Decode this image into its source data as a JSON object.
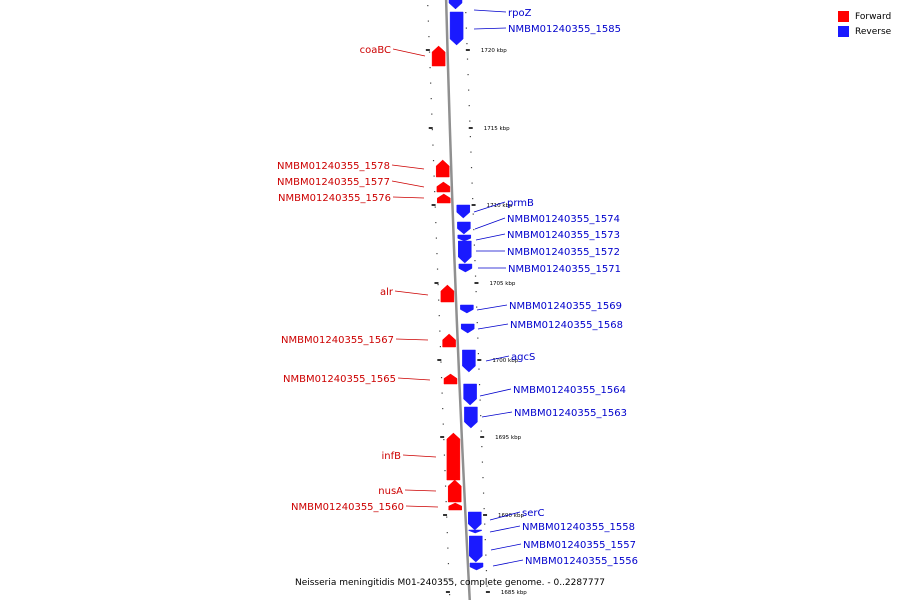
{
  "colors": {
    "forward": "#ff0000",
    "reverse": "#1a1aff",
    "forward_label": "#cc0000",
    "reverse_label": "#0000cc",
    "backbone": "#909090"
  },
  "legend": [
    {
      "label": "Forward",
      "strand": "forward"
    },
    {
      "label": "Reverse",
      "strand": "reverse"
    }
  ],
  "caption": "Neisseria meningitidis M01-240355, complete genome. - 0..2287777",
  "genes": [
    {
      "name": "rpoZ",
      "strand": "reverse"
    },
    {
      "name": "NMBM01240355_1585",
      "strand": "reverse"
    },
    {
      "name": "coaBC",
      "strand": "forward"
    },
    {
      "name": "NMBM01240355_1578",
      "strand": "forward"
    },
    {
      "name": "NMBM01240355_1577",
      "strand": "forward"
    },
    {
      "name": "NMBM01240355_1576",
      "strand": "forward"
    },
    {
      "name": "prmB",
      "strand": "reverse"
    },
    {
      "name": "NMBM01240355_1574",
      "strand": "reverse"
    },
    {
      "name": "NMBM01240355_1573",
      "strand": "reverse"
    },
    {
      "name": "NMBM01240355_1572",
      "strand": "reverse"
    },
    {
      "name": "NMBM01240355_1571",
      "strand": "reverse"
    },
    {
      "name": "alr",
      "strand": "forward"
    },
    {
      "name": "NMBM01240355_1569",
      "strand": "reverse"
    },
    {
      "name": "NMBM01240355_1568",
      "strand": "reverse"
    },
    {
      "name": "NMBM01240355_1567",
      "strand": "forward"
    },
    {
      "name": "agcS",
      "strand": "reverse"
    },
    {
      "name": "NMBM01240355_1565",
      "strand": "forward"
    },
    {
      "name": "NMBM01240355_1564",
      "strand": "reverse"
    },
    {
      "name": "NMBM01240355_1563",
      "strand": "reverse"
    },
    {
      "name": "infB",
      "strand": "forward"
    },
    {
      "name": "nusA",
      "strand": "forward"
    },
    {
      "name": "NMBM01240355_1560",
      "strand": "forward"
    },
    {
      "name": "serC",
      "strand": "reverse"
    },
    {
      "name": "NMBM01240355_1558",
      "strand": "reverse"
    },
    {
      "name": "NMBM01240355_1557",
      "strand": "reverse"
    },
    {
      "name": "NMBM01240355_1556",
      "strand": "reverse"
    }
  ],
  "ticks": [
    "1720 kbp",
    "1715 kbp",
    "1710 kbp",
    "1705 kbp",
    "1700 kbp",
    "1695 kbp",
    "1690 kbp",
    "1685 kbp"
  ]
}
